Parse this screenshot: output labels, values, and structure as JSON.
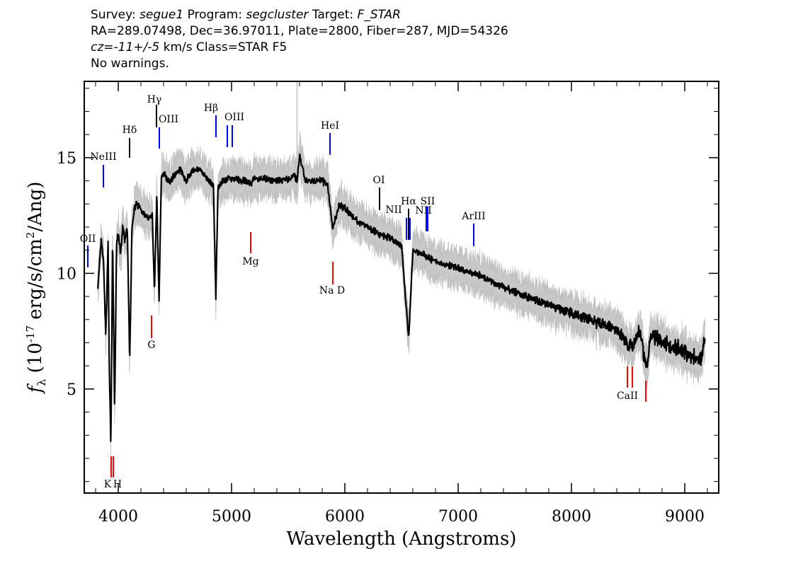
{
  "header": {
    "line1": {
      "survey_label": "Survey:",
      "survey": "segue1",
      "program_label": "Program:",
      "program": "segcluster",
      "target_label": "Target:",
      "target": "F_STAR"
    },
    "line2": "RA=289.07498, Dec=36.97011, Plate=2800, Fiber=287, MJD=54326",
    "line3": {
      "cz": "cz=-11+/-5",
      "rest": " km/s Class=STAR F5"
    },
    "line4": "No warnings."
  },
  "chart_data": {
    "type": "line",
    "xlabel": "Wavelength (Angstroms)",
    "ylabel": "f_λ (10^-17 erg/s/cm^2/Ang)",
    "xlim": [
      3700,
      9300
    ],
    "ylim": [
      0.5,
      18.3
    ],
    "x_ticks": [
      4000,
      5000,
      6000,
      7000,
      8000,
      9000
    ],
    "y_ticks": [
      5,
      10,
      15
    ],
    "series": [
      {
        "color": "#000000",
        "x": [
          3820,
          3850,
          3870,
          3890,
          3910,
          3920,
          3935,
          3950,
          3968,
          3985,
          4000,
          4020,
          4040,
          4060,
          4080,
          4101,
          4120,
          4140,
          4160,
          4200,
          4250,
          4300,
          4320,
          4340,
          4360,
          4380,
          4400,
          4450,
          4500,
          4550,
          4600,
          4650,
          4700,
          4750,
          4800,
          4840,
          4861,
          4880,
          4920,
          5000,
          5100,
          5170,
          5200,
          5300,
          5400,
          5500,
          5550,
          5580,
          5600,
          5650,
          5700,
          5800,
          5850,
          5893,
          5950,
          6000,
          6100,
          6200,
          6300,
          6400,
          6500,
          6563,
          6600,
          6700,
          6800,
          6900,
          7000,
          7200,
          7400,
          7600,
          7800,
          8000,
          8200,
          8400,
          8498,
          8542,
          8600,
          8662,
          8700,
          8800,
          8900,
          9000,
          9100,
          9150,
          9180
        ],
        "values": [
          9.4,
          11.4,
          10.5,
          7.2,
          11.3,
          6.3,
          2.4,
          11.6,
          3.9,
          11.2,
          11.8,
          10.8,
          12.0,
          11.4,
          12.0,
          6.1,
          11.8,
          12.8,
          13.0,
          12.8,
          12.4,
          12.5,
          9.2,
          13.5,
          8.8,
          14.1,
          14.4,
          13.9,
          14.3,
          14.5,
          14.0,
          14.4,
          14.5,
          14.3,
          14.0,
          13.8,
          8.9,
          13.7,
          14.0,
          14.1,
          14.0,
          13.9,
          14.1,
          14.1,
          14.0,
          14.1,
          14.2,
          14.0,
          15.1,
          14.0,
          14.0,
          14.0,
          13.8,
          11.9,
          13.0,
          12.8,
          12.3,
          12.0,
          11.7,
          11.5,
          11.2,
          7.2,
          11.0,
          10.8,
          10.5,
          10.4,
          10.2,
          9.9,
          9.4,
          9.0,
          8.6,
          8.3,
          7.9,
          7.6,
          6.9,
          6.8,
          7.6,
          5.9,
          7.3,
          7.1,
          6.8,
          6.6,
          6.3,
          6.4,
          7.4
        ]
      }
    ],
    "lines": [
      {
        "label": "OII",
        "x": 3727,
        "color": "#0000ff"
      },
      {
        "label": "NeIII",
        "x": 3869,
        "color": "#0000ff"
      },
      {
        "label": "Hδ",
        "x": 4101,
        "color": "#000000"
      },
      {
        "label": "Hγ",
        "x": 4340,
        "color": "#000000"
      },
      {
        "label": "OIII",
        "x": 4363,
        "color": "#0000ff"
      },
      {
        "label": "Hβ",
        "x": 4861,
        "color": "#0000ff"
      },
      {
        "label": "OIII",
        "x": 4959,
        "color": "#0000ff"
      },
      {
        "label": "",
        "x": 5007,
        "color": "#0000ff"
      },
      {
        "label": "HeI",
        "x": 5876,
        "color": "#0000ff"
      },
      {
        "label": "OI",
        "x": 6300,
        "color": "#000000"
      },
      {
        "label": "NII",
        "x": 6548,
        "color": "#0000ff"
      },
      {
        "label": "Hα",
        "x": 6563,
        "color": "#000000"
      },
      {
        "label": "NII",
        "x": 6583,
        "color": "#0000ff"
      },
      {
        "label": "SII",
        "x": 6716,
        "color": "#0000ff"
      },
      {
        "label": "",
        "x": 6731,
        "color": "#0000ff"
      },
      {
        "label": "ArIII",
        "x": 7136,
        "color": "#0000ff"
      },
      {
        "label": "K",
        "x": 3934,
        "color": "#ff0000"
      },
      {
        "label": "H",
        "x": 3969,
        "color": "#ff0000"
      },
      {
        "label": "G",
        "x": 4304,
        "color": "#ff0000"
      },
      {
        "label": "Mg",
        "x": 5175,
        "color": "#ff0000"
      },
      {
        "label": "Na D",
        "x": 5894,
        "color": "#ff0000"
      },
      {
        "label": "",
        "x": 8498,
        "color": "#ff0000"
      },
      {
        "label": "",
        "x": 8542,
        "color": "#ff0000"
      },
      {
        "label": "CaII",
        "x": 8662,
        "color": "#ff0000"
      }
    ]
  }
}
